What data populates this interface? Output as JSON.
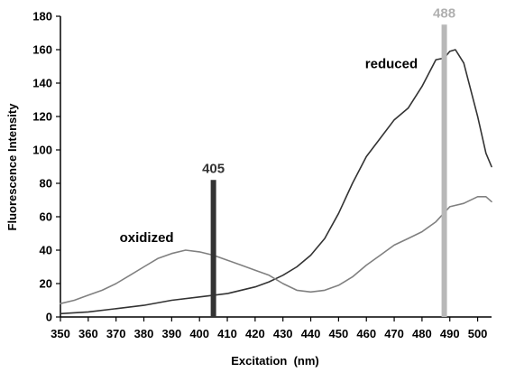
{
  "chart_data": {
    "type": "line",
    "xlabel": "Excitation  (nm)",
    "ylabel": "Fluorescence Intensity",
    "xlim": [
      350,
      505
    ],
    "ylim": [
      0,
      180
    ],
    "x_ticks": [
      350,
      360,
      370,
      380,
      390,
      400,
      410,
      420,
      430,
      440,
      450,
      460,
      470,
      480,
      490,
      500
    ],
    "y_ticks": [
      0,
      20,
      40,
      60,
      80,
      100,
      120,
      140,
      160,
      180
    ],
    "grid": false,
    "legend": "none",
    "series": [
      {
        "name": "reduced",
        "color": "#333333",
        "x": [
          350,
          360,
          370,
          380,
          390,
          400,
          405,
          410,
          420,
          425,
          430,
          435,
          440,
          445,
          450,
          455,
          460,
          465,
          470,
          475,
          480,
          485,
          488,
          490,
          492,
          495,
          500,
          503,
          505
        ],
        "y": [
          2,
          3,
          5,
          7,
          10,
          12,
          13,
          14,
          18,
          21,
          25,
          30,
          37,
          47,
          62,
          80,
          96,
          107,
          118,
          125,
          138,
          154,
          155,
          159,
          160,
          152,
          120,
          98,
          90
        ]
      },
      {
        "name": "oxidized",
        "color": "#808080",
        "x": [
          350,
          355,
          360,
          365,
          370,
          375,
          380,
          385,
          390,
          395,
          400,
          405,
          410,
          415,
          420,
          425,
          430,
          435,
          440,
          445,
          450,
          455,
          460,
          465,
          470,
          475,
          480,
          485,
          490,
          495,
          500,
          503,
          505
        ],
        "y": [
          8,
          10,
          13,
          16,
          20,
          25,
          30,
          35,
          38,
          40,
          39,
          37,
          34,
          31,
          28,
          25,
          20,
          16,
          15,
          16,
          19,
          24,
          31,
          37,
          43,
          47,
          51,
          57,
          66,
          68,
          72,
          72,
          69
        ]
      }
    ],
    "annotations": [
      {
        "text": "oxidized",
        "x": 381,
        "y": 45,
        "color": "#000000"
      },
      {
        "text": "reduced",
        "x": 469,
        "y": 149,
        "color": "#000000"
      }
    ],
    "markers": [
      {
        "label": "405",
        "x": 405,
        "y_top": 82,
        "color": "#333333",
        "label_color": "#333333"
      },
      {
        "label": "488",
        "x": 488,
        "y_top": 175,
        "color": "#b8b8b8",
        "label_color": "#b0b0b0"
      }
    ]
  }
}
